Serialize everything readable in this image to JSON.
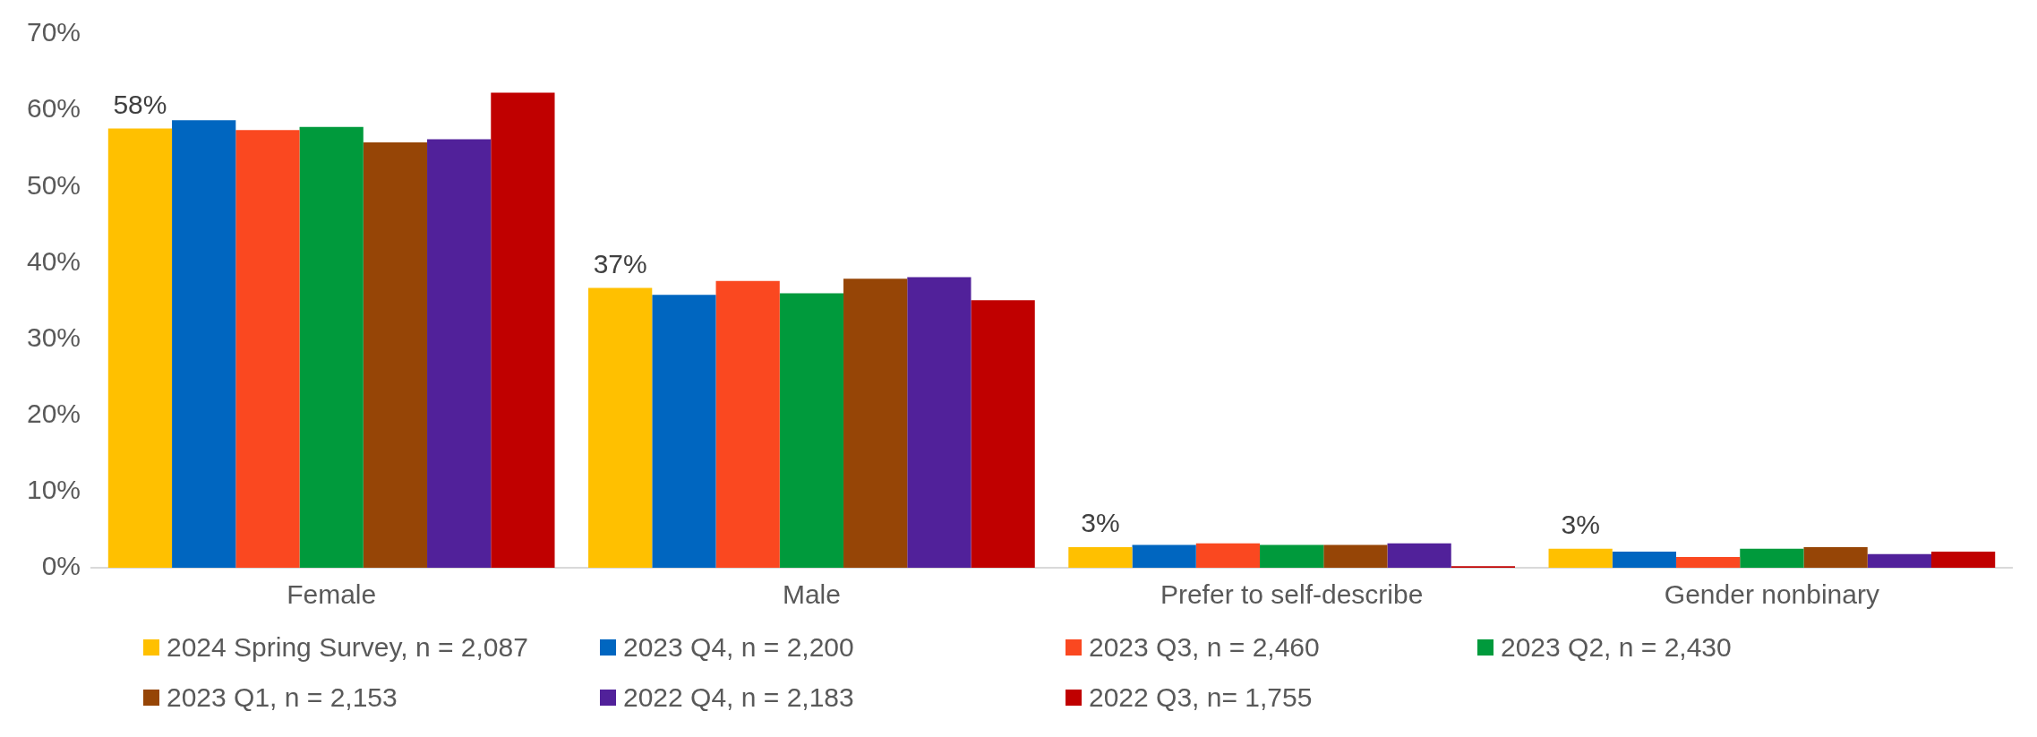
{
  "chart_data": {
    "type": "bar",
    "categories": [
      "Female",
      "Male",
      "Prefer to self-describe",
      "Gender nonbinary"
    ],
    "ylim": [
      0,
      70
    ],
    "yticks": [
      {
        "value": 0,
        "label": "0%"
      },
      {
        "value": 10,
        "label": "10%"
      },
      {
        "value": 20,
        "label": "20%"
      },
      {
        "value": 30,
        "label": "30%"
      },
      {
        "value": 40,
        "label": "40%"
      },
      {
        "value": 50,
        "label": "50%"
      },
      {
        "value": 60,
        "label": "60%"
      },
      {
        "value": 70,
        "label": "70%"
      }
    ],
    "grid": false,
    "legend": "bottom",
    "series": [
      {
        "name": "2024 Spring Survey, n = 2,087",
        "color": "#ffc000",
        "values": [
          57.6,
          36.7,
          2.7,
          2.5
        ],
        "value_labels": [
          "58%",
          "37%",
          "3%",
          "3%"
        ]
      },
      {
        "name": "2023 Q4, n = 2,200",
        "color": "#0066c0",
        "values": [
          58.7,
          35.8,
          3.0,
          2.1
        ]
      },
      {
        "name": "2023 Q3, n = 2,460",
        "color": "#fa4820",
        "values": [
          57.4,
          37.6,
          3.2,
          1.4
        ]
      },
      {
        "name": "2023 Q2, n = 2,430",
        "color": "#009a3c",
        "values": [
          57.8,
          36.0,
          3.0,
          2.5
        ]
      },
      {
        "name": "2023 Q1, n = 2,153",
        "color": "#964506",
        "values": [
          55.8,
          37.9,
          3.0,
          2.7
        ]
      },
      {
        "name": "2022 Q4, n = 2,183",
        "color": "#51219a",
        "values": [
          56.2,
          38.1,
          3.2,
          1.8
        ]
      },
      {
        "name": "2022 Q3, n= 1,755",
        "color": "#c00000",
        "values": [
          62.3,
          35.1,
          0.2,
          2.1
        ]
      }
    ]
  }
}
